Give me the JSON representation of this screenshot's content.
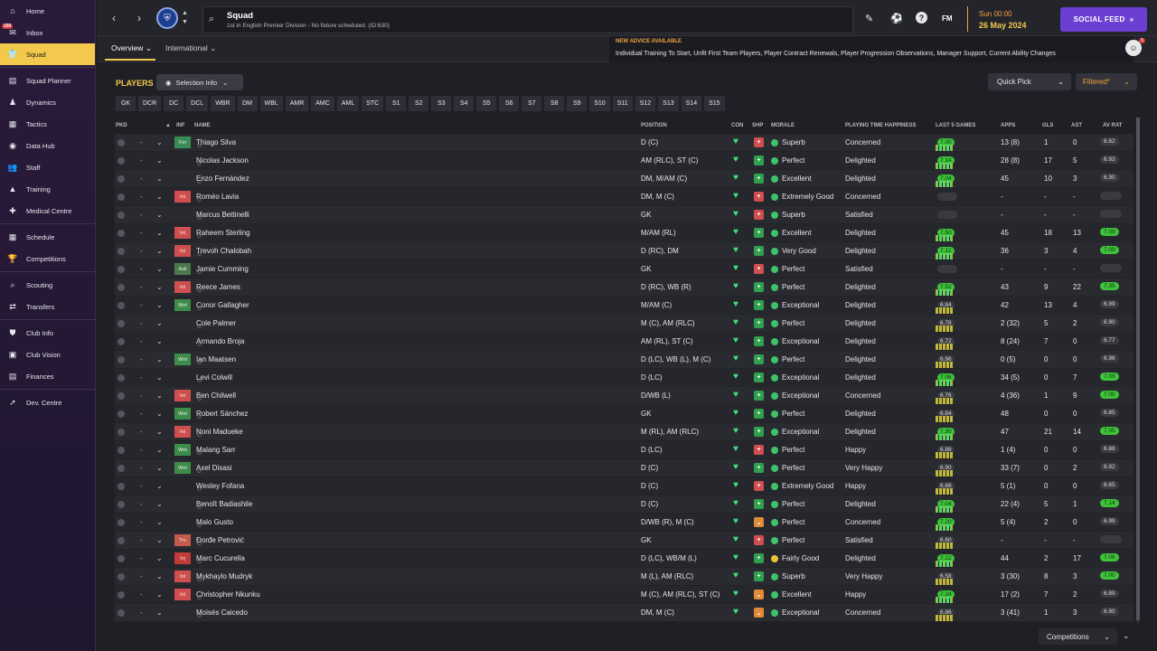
{
  "sidebar": {
    "items": [
      {
        "label": "Home",
        "icon": "home-icon",
        "glyph": "⌂"
      },
      {
        "label": "Inbox",
        "icon": "inbox-icon",
        "glyph": "✉",
        "badge": "150"
      },
      {
        "label": "Squad",
        "icon": "shirt-icon",
        "glyph": "👕",
        "active": true
      },
      {
        "label": "Squad Planner",
        "icon": "planner-icon",
        "glyph": "▤"
      },
      {
        "label": "Dynamics",
        "icon": "dynamics-icon",
        "glyph": "♟"
      },
      {
        "label": "Tactics",
        "icon": "tactics-icon",
        "glyph": "▦"
      },
      {
        "label": "Data Hub",
        "icon": "datahub-icon",
        "glyph": "◉"
      },
      {
        "label": "Staff",
        "icon": "staff-icon",
        "glyph": "👥"
      },
      {
        "label": "Training",
        "icon": "training-icon",
        "glyph": "▲"
      },
      {
        "label": "Medical Centre",
        "icon": "medical-icon",
        "glyph": "✚"
      },
      {
        "label": "Schedule",
        "icon": "schedule-icon",
        "glyph": "▦"
      },
      {
        "label": "Competitions",
        "icon": "trophy-icon",
        "glyph": "🏆"
      },
      {
        "label": "Scouting",
        "icon": "scouting-icon",
        "glyph": "⌕"
      },
      {
        "label": "Transfers",
        "icon": "transfers-icon",
        "glyph": "⇄"
      },
      {
        "label": "Club Info",
        "icon": "shield-icon",
        "glyph": "⛊"
      },
      {
        "label": "Club Vision",
        "icon": "vision-icon",
        "glyph": "▣"
      },
      {
        "label": "Finances",
        "icon": "finances-icon",
        "glyph": "▤"
      },
      {
        "label": "Dev. Centre",
        "icon": "devcentre-icon",
        "glyph": "➚"
      }
    ]
  },
  "topbar": {
    "title": "Squad",
    "subtitle": "1st in English Premier Division - No fixture scheduled. (ID:630)",
    "fm": "FM",
    "date_day": "Sun 00:00",
    "date": "26 May 2024",
    "feed": "SOCIAL FEED"
  },
  "subbar": {
    "tab_overview": "Overview",
    "tab_international": "International",
    "advice_title": "NEW ADVICE AVAILABLE",
    "advice_text": "Individual Training To Start, Unfit First Team Players, Player Contract Renewals, Player Progression Observations, Manager Support, Current Ability Changes",
    "avatar_count": "5"
  },
  "main": {
    "title": "PLAYERS",
    "selection_info": "Selection Info",
    "quick_pick": "Quick Pick",
    "filtered": "Filtered*",
    "competitions": "Competitions",
    "positions": [
      "GK",
      "DCR",
      "DC",
      "DCL",
      "WBR",
      "DM",
      "WBL",
      "AMR",
      "AMC",
      "AML",
      "STC",
      "S1",
      "S2",
      "S3",
      "S4",
      "S5",
      "S6",
      "S7",
      "S8",
      "S9",
      "S10",
      "S11",
      "S12",
      "S13",
      "S14",
      "S15"
    ]
  },
  "table": {
    "headers": {
      "pkd": "PKD",
      "inf": "INF",
      "name": "NAME",
      "position": "POSITION",
      "con": "CON",
      "shp": "SHP",
      "morale": "MORALE",
      "pth": "PLAYING TIME HAPPINESS",
      "l5": "LAST 5 GAMES",
      "apps": "APPS",
      "gls": "GLS",
      "ast": "AST",
      "avrat": "AV RAT"
    },
    "rows": [
      {
        "inf": "Fm",
        "infc": "fm",
        "name": "Thiago Silva",
        "pos": "D (C)",
        "shp": "r",
        "morale": "Superb",
        "pth": "Concerned",
        "l5": "7.00",
        "l5hi": true,
        "apps": "13 (8)",
        "gls": "1",
        "ast": "0",
        "avr": "6.82",
        "avrhi": false
      },
      {
        "inf": "",
        "infc": "",
        "name": "Nicolas Jackson",
        "pos": "AM (RLC), ST (C)",
        "shp": "g",
        "morale": "Perfect",
        "pth": "Delighted",
        "l5": "7.14",
        "l5hi": true,
        "apps": "28 (8)",
        "gls": "17",
        "ast": "5",
        "avr": "6.93",
        "avrhi": false
      },
      {
        "inf": "",
        "infc": "",
        "name": "Enzo Fernández",
        "pos": "DM, M/AM (C)",
        "shp": "g",
        "morale": "Excellent",
        "pth": "Delighted",
        "l5": "7.04",
        "l5hi": true,
        "apps": "45",
        "gls": "10",
        "ast": "3",
        "avr": "6.90",
        "avrhi": false
      },
      {
        "inf": "Int",
        "infc": "int",
        "name": "Roméo Lavia",
        "pos": "DM, M (C)",
        "shp": "r",
        "morale": "Extremely Good",
        "pth": "Concerned",
        "l5": "",
        "l5hi": false,
        "apps": "-",
        "gls": "-",
        "ast": "-",
        "avr": "",
        "avrhi": false
      },
      {
        "inf": "",
        "infc": "",
        "name": "Marcus Bettinelli",
        "pos": "GK",
        "shp": "r",
        "morale": "Superb",
        "pth": "Satisfied",
        "l5": "",
        "l5hi": false,
        "apps": "-",
        "gls": "-",
        "ast": "-",
        "avr": "",
        "avrhi": false
      },
      {
        "inf": "Int",
        "infc": "int",
        "name": "Raheem Sterling",
        "pos": "M/AM (RL)",
        "shp": "g",
        "morale": "Excellent",
        "pth": "Delighted",
        "l5": "7.50",
        "l5hi": true,
        "apps": "45",
        "gls": "18",
        "ast": "13",
        "avr": "7.09",
        "avrhi": true
      },
      {
        "inf": "Int",
        "infc": "int",
        "name": "Trevoh Chalobah",
        "pos": "D (RC), DM",
        "shp": "g",
        "morale": "Very Good",
        "pth": "Delighted",
        "l5": "7.12",
        "l5hi": true,
        "apps": "36",
        "gls": "3",
        "ast": "4",
        "avr": "7.09",
        "avrhi": true
      },
      {
        "inf": "Ask",
        "infc": "ask",
        "name": "Jamie Cumming",
        "pos": "GK",
        "shp": "r",
        "morale": "Perfect",
        "pth": "Satisfied",
        "l5": "",
        "l5hi": false,
        "apps": "-",
        "gls": "-",
        "ast": "-",
        "avr": "",
        "avrhi": false
      },
      {
        "inf": "Int",
        "infc": "int",
        "name": "Reece James",
        "pos": "D (RC), WB (R)",
        "shp": "g",
        "morale": "Perfect",
        "pth": "Delighted",
        "l5": "7.52",
        "l5hi": true,
        "apps": "43",
        "gls": "9",
        "ast": "22",
        "avr": "7.35",
        "avrhi": true
      },
      {
        "inf": "Wnt",
        "infc": "wnt",
        "name": "Conor Gallagher",
        "pos": "M/AM (C)",
        "shp": "g",
        "morale": "Exceptional",
        "pth": "Delighted",
        "l5": "6.84",
        "l5hi": false,
        "apps": "42",
        "gls": "13",
        "ast": "4",
        "avr": "6.99",
        "avrhi": false
      },
      {
        "inf": "",
        "infc": "",
        "name": "Cole Palmer",
        "pos": "M (C), AM (RLC)",
        "shp": "g",
        "morale": "Perfect",
        "pth": "Delighted",
        "l5": "6.78",
        "l5hi": false,
        "apps": "2 (32)",
        "gls": "5",
        "ast": "2",
        "avr": "6.90",
        "avrhi": false
      },
      {
        "inf": "",
        "infc": "",
        "name": "Armando Broja",
        "pos": "AM (RL), ST (C)",
        "shp": "g",
        "morale": "Exceptional",
        "pth": "Delighted",
        "l5": "6.72",
        "l5hi": false,
        "apps": "8 (24)",
        "gls": "7",
        "ast": "0",
        "avr": "6.77",
        "avrhi": false
      },
      {
        "inf": "Wnt",
        "infc": "wnt",
        "name": "Ian Maatsen",
        "pos": "D (LC), WB (L), M (C)",
        "shp": "g",
        "morale": "Perfect",
        "pth": "Delighted",
        "l5": "6.96",
        "l5hi": false,
        "apps": "0 (5)",
        "gls": "0",
        "ast": "0",
        "avr": "6.96",
        "avrhi": false
      },
      {
        "inf": "",
        "infc": "",
        "name": "Levi Colwill",
        "pos": "D (LC)",
        "shp": "g",
        "morale": "Exceptional",
        "pth": "Delighted",
        "l5": "7.06",
        "l5hi": true,
        "apps": "34 (5)",
        "gls": "0",
        "ast": "7",
        "avr": "7.09",
        "avrhi": true
      },
      {
        "inf": "Int",
        "infc": "int",
        "name": "Ben Chilwell",
        "pos": "D/WB (L)",
        "shp": "g",
        "morale": "Exceptional",
        "pth": "Concerned",
        "l5": "6.76",
        "l5hi": false,
        "apps": "4 (36)",
        "gls": "1",
        "ast": "9",
        "avr": "7.00",
        "avrhi": true
      },
      {
        "inf": "Wnt",
        "infc": "wnt",
        "name": "Robert Sánchez",
        "pos": "GK",
        "shp": "g",
        "morale": "Perfect",
        "pth": "Delighted",
        "l5": "6.84",
        "l5hi": false,
        "apps": "48",
        "gls": "0",
        "ast": "0",
        "avr": "6.85",
        "avrhi": false
      },
      {
        "inf": "Int",
        "infc": "int",
        "name": "Noni Madueke",
        "pos": "M (RL), AM (RLC)",
        "shp": "g",
        "morale": "Exceptional",
        "pth": "Delighted",
        "l5": "7.30",
        "l5hi": true,
        "apps": "47",
        "gls": "21",
        "ast": "14",
        "avr": "7.05",
        "avrhi": true
      },
      {
        "inf": "Wnt",
        "infc": "wnt",
        "name": "Malang Sarr",
        "pos": "D (LC)",
        "shp": "r",
        "morale": "Perfect",
        "pth": "Happy",
        "l5": "6.88",
        "l5hi": false,
        "apps": "1 (4)",
        "gls": "0",
        "ast": "0",
        "avr": "6.88",
        "avrhi": false
      },
      {
        "inf": "Wnt",
        "infc": "wnt",
        "name": "Axel Disasi",
        "pos": "D (C)",
        "shp": "g",
        "morale": "Perfect",
        "pth": "Very Happy",
        "l5": "6.90",
        "l5hi": false,
        "apps": "33 (7)",
        "gls": "0",
        "ast": "2",
        "avr": "6.92",
        "avrhi": false
      },
      {
        "inf": "",
        "infc": "",
        "name": "Wesley Fofana",
        "pos": "D (C)",
        "shp": "r",
        "morale": "Extremely Good",
        "pth": "Happy",
        "l5": "6.68",
        "l5hi": false,
        "apps": "5 (1)",
        "gls": "0",
        "ast": "0",
        "avr": "6.65",
        "avrhi": false
      },
      {
        "inf": "",
        "infc": "",
        "name": "Benoît Badiashile",
        "pos": "D (C)",
        "shp": "g",
        "morale": "Perfect",
        "pth": "Delighted",
        "l5": "7.04",
        "l5hi": true,
        "apps": "22 (4)",
        "gls": "5",
        "ast": "1",
        "avr": "7.14",
        "avrhi": true
      },
      {
        "inf": "",
        "infc": "",
        "name": "Malo Gusto",
        "pos": "D/WB (R), M (C)",
        "shp": "o",
        "morale": "Perfect",
        "pth": "Concerned",
        "l5": "7.20",
        "l5hi": true,
        "apps": "5 (4)",
        "gls": "2",
        "ast": "0",
        "avr": "6.99",
        "avrhi": false
      },
      {
        "inf": "Trv",
        "infc": "trv",
        "name": "Đorđe Petrović",
        "pos": "GK",
        "shp": "r",
        "morale": "Perfect",
        "pth": "Satisfied",
        "l5": "6.60",
        "l5hi": false,
        "apps": "-",
        "gls": "-",
        "ast": "-",
        "avr": "",
        "avrhi": false
      },
      {
        "inf": "Inj",
        "infc": "inj",
        "name": "Marc Cucurella",
        "pos": "D (LC), WB/M (L)",
        "shp": "g",
        "morale": "Fairly Good",
        "pth": "Delighted",
        "l5": "7.22",
        "l5hi": true,
        "apps": "44",
        "gls": "2",
        "ast": "17",
        "avr": "7.06",
        "avrhi": true
      },
      {
        "inf": "Int",
        "infc": "int",
        "name": "Mykhaylo Mudryk",
        "pos": "M (L), AM (RLC)",
        "shp": "g",
        "morale": "Superb",
        "pth": "Very Happy",
        "l5": "6.58",
        "l5hi": false,
        "apps": "3 (30)",
        "gls": "8",
        "ast": "3",
        "avr": "7.00",
        "avrhi": true
      },
      {
        "inf": "Int",
        "infc": "int",
        "name": "Christopher Nkunku",
        "pos": "M (C), AM (RLC), ST (C)",
        "shp": "o",
        "morale": "Excellent",
        "pth": "Happy",
        "l5": "7.34",
        "l5hi": true,
        "apps": "17 (2)",
        "gls": "7",
        "ast": "2",
        "avr": "6.89",
        "avrhi": false
      },
      {
        "inf": "",
        "infc": "",
        "name": "Moisés Caicedo",
        "pos": "DM, M (C)",
        "shp": "o",
        "morale": "Exceptional",
        "pth": "Concerned",
        "l5": "6.86",
        "l5hi": false,
        "apps": "3 (41)",
        "gls": "1",
        "ast": "3",
        "avr": "6.90",
        "avrhi": false
      }
    ]
  }
}
